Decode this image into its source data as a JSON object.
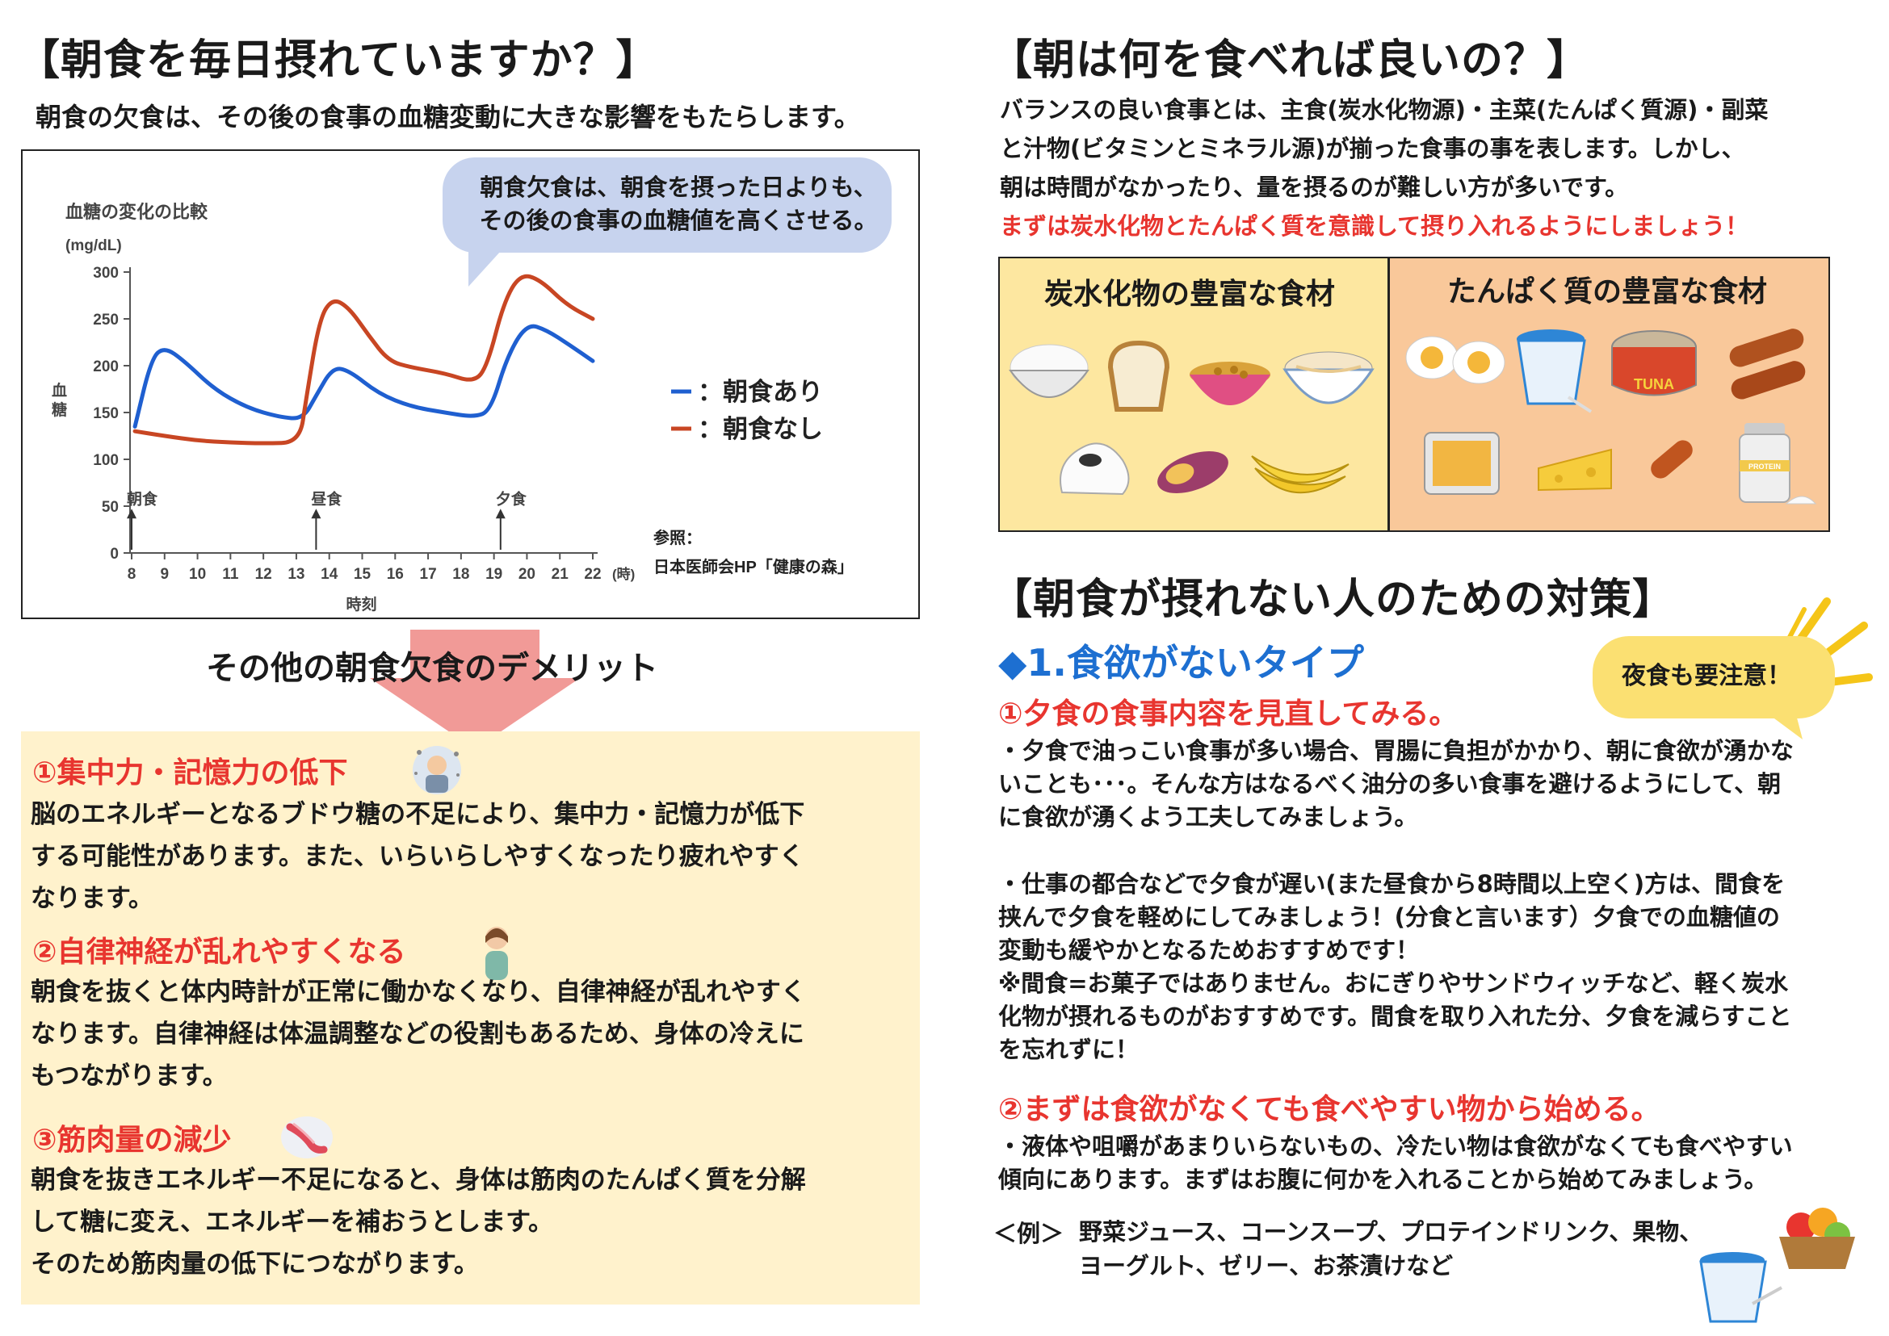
{
  "left": {
    "title": "【朝食を毎日摂れていますか？】",
    "intro": "朝食の欠食は、その後の食事の血糖変動に大きな影響をもたらします。",
    "bubble_lines": [
      "朝食欠食は、朝食を摂った日よりも、",
      "その後の食事の血糖値を高くさせる。"
    ],
    "demerit_heading": "その他の朝食欠食のデメリット",
    "items": [
      {
        "title": "①集中力・記憶力の低下",
        "lines": [
          "脳のエネルギーとなるブドウ糖の不足により、集中力・記憶力が低下",
          "する可能性があります。また、いらいらしやすくなったり疲れやすく",
          "なります。"
        ]
      },
      {
        "title": "②自律神経が乱れやすくなる",
        "lines": [
          "朝食を抜くと体内時計が正常に働かなくなり、自律神経が乱れやすく",
          "なります。自律神経は体温調整などの役割もあるため、身体の冷えに",
          "もつながります。"
        ]
      },
      {
        "title": "③筋肉量の減少",
        "lines": [
          "朝食を抜きエネルギー不足になると、身体は筋肉のたんぱく質を分解",
          "して糖に変え、エネルギーを補おうとします。",
          "そのため筋肉量の低下につながります。"
        ]
      }
    ]
  },
  "chart_data": {
    "type": "line",
    "title": "血糖の変化の比較",
    "unit": "(mg/dL)",
    "ylabel": "血糖",
    "xlabel": "時刻",
    "x_unit": "(時)",
    "ylim": [
      0,
      300
    ],
    "xlim": [
      8,
      22
    ],
    "yticks": [
      "0",
      "50",
      "100",
      "150",
      "200",
      "250",
      "300"
    ],
    "xticks": [
      "8",
      "9",
      "10",
      "11",
      "12",
      "13",
      "14",
      "15",
      "16",
      "17",
      "18",
      "19",
      "20",
      "21",
      "22"
    ],
    "meal_markers": [
      {
        "x": 8,
        "label": "朝食"
      },
      {
        "x": 13.6,
        "label": "昼食"
      },
      {
        "x": 19.2,
        "label": "夕食"
      }
    ],
    "legend_prefix": "：",
    "series": [
      {
        "name": "朝食あり",
        "color": "#1f5fd0",
        "points": [
          [
            8.1,
            135
          ],
          [
            8.6,
            208
          ],
          [
            9.0,
            220
          ],
          [
            9.6,
            205
          ],
          [
            10.5,
            175
          ],
          [
            11.5,
            155
          ],
          [
            12.5,
            145
          ],
          [
            13.2,
            143
          ],
          [
            13.6,
            168
          ],
          [
            14.1,
            198
          ],
          [
            14.6,
            195
          ],
          [
            15.5,
            170
          ],
          [
            16.5,
            156
          ],
          [
            17.5,
            150
          ],
          [
            18.4,
            145
          ],
          [
            18.9,
            152
          ],
          [
            19.4,
            210
          ],
          [
            20.0,
            245
          ],
          [
            20.6,
            238
          ],
          [
            21.3,
            222
          ],
          [
            22.0,
            205
          ]
        ]
      },
      {
        "name": "朝食なし",
        "color": "#c84623",
        "points": [
          [
            8.1,
            130
          ],
          [
            9.0,
            125
          ],
          [
            10.0,
            120
          ],
          [
            11.0,
            118
          ],
          [
            12.0,
            117
          ],
          [
            13.1,
            118
          ],
          [
            13.3,
            165
          ],
          [
            13.7,
            250
          ],
          [
            14.1,
            272
          ],
          [
            14.6,
            262
          ],
          [
            15.2,
            232
          ],
          [
            15.8,
            205
          ],
          [
            16.5,
            198
          ],
          [
            17.5,
            192
          ],
          [
            18.4,
            182
          ],
          [
            18.8,
            200
          ],
          [
            19.3,
            268
          ],
          [
            19.8,
            298
          ],
          [
            20.4,
            292
          ],
          [
            21.2,
            265
          ],
          [
            22.0,
            250
          ]
        ]
      }
    ],
    "reference_label": "参照：",
    "reference_source": "日本医師会HP「健康の森」"
  },
  "right": {
    "title1": "【朝は何を食べれば良いの？】",
    "intro_lines": [
      "バランスの良い食事とは、主食(炭水化物源)・主菜(たんぱく質源)・副菜",
      "と汁物(ビタミンとミネラル源)が揃った食事の事を表します。しかし、",
      "朝は時間がなかったり、量を摂るのが難しい方が多いです。"
    ],
    "intro_red": "まずは炭水化物とたんぱく質を意識して摂り入れるようにしましょう！",
    "carb_title": "炭水化物の豊富な食材",
    "protein_title": "たんぱく質の豊富な食材",
    "tuna_label": "TUNA",
    "protein_label": "PROTEIN",
    "title2": "【朝食が摂れない人のための対策】",
    "type1": "◆1.食欲がないタイプ",
    "warn": "夜食も要注意！",
    "sub1": "①夕食の食事内容を見直してみる。",
    "para1": [
      "・夕食で油っこい食事が多い場合、胃腸に負担がかかり、朝に食欲が湧かな",
      "いことも･･･。そんな方はなるべく油分の多い食事を避けるようにして、朝",
      "に食欲が湧くよう工夫してみましょう。"
    ],
    "para2": [
      "・仕事の都合などで夕食が遅い(また昼食から8時間以上空く)方は、間食を",
      "挟んで夕食を軽めにしてみましょう！(分食と言います）夕食での血糖値の",
      "変動も緩やかとなるためおすすめです！",
      "※間食=お菓子ではありません。おにぎりやサンドウィッチなど、軽く炭水",
      "化物が摂れるものがおすすめです。間食を取り入れた分、夕食を減らすこと",
      "を忘れずに！"
    ],
    "sub2": "②まずは食欲がなくても食べやすい物から始める。",
    "para3": [
      "・液体や咀嚼があまりいらないもの、冷たい物は食欲がなくても食べやすい",
      "傾向にあります。まずはお腹に何かを入れることから始めてみましょう。"
    ],
    "example_label": "＜例＞",
    "example_lines": [
      "野菜ジュース、コーンスープ、プロテインドリンク、果物、",
      "ヨーグルト、ゼリー、お茶漬けなど"
    ]
  },
  "colors": {
    "red": "#e8352f",
    "blue": "#1d6fd1",
    "yellow_box": "#fff2cc",
    "bubble": "#c7d3ee"
  }
}
